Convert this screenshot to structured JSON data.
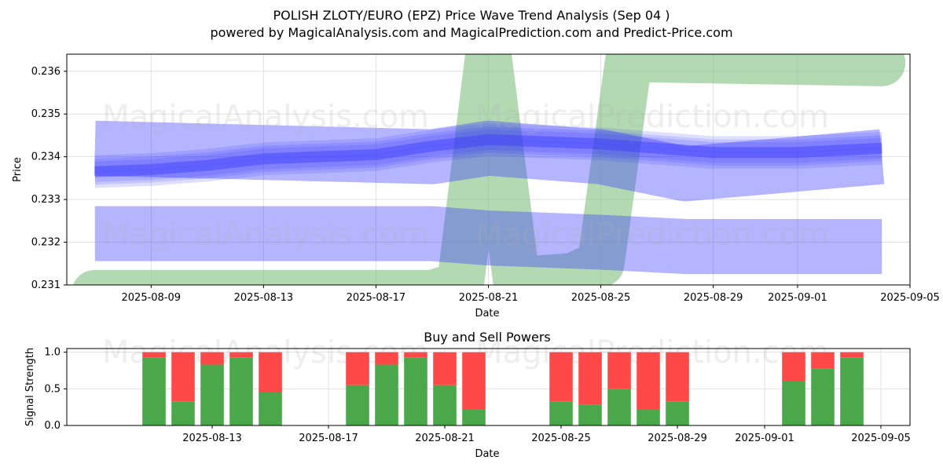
{
  "title": "POLISH ZLOTY/EURO (EPZ) Price Wave Trend Analysis (Sep 04 )",
  "subtitle": "powered by MagicalAnalysis.com and MagicalPrediction.com and Predict-Price.com",
  "watermarks": [
    "MagicalAnalysis.com",
    "MagicalPrediction.com"
  ],
  "colors": {
    "buy": "#4aa84a",
    "sell": "#ff4848",
    "wave": "#3a3aff",
    "green_band": "#7fbf7f",
    "grid": "#e0e0e0"
  },
  "chart_data": [
    {
      "type": "area",
      "xlabel": "Date",
      "ylabel": "Price",
      "xlim": [
        "2025-08-06",
        "2025-09-05"
      ],
      "ylim": [
        0.231,
        0.2364
      ],
      "x_ticks": [
        "2025-08-09",
        "2025-08-13",
        "2025-08-17",
        "2025-08-21",
        "2025-08-25",
        "2025-08-29",
        "2025-09-01",
        "2025-09-05"
      ],
      "y_ticks": [
        "0.231",
        "0.232",
        "0.233",
        "0.234",
        "0.235",
        "0.236"
      ],
      "grid": true,
      "series": [
        {
          "kind": "green_band",
          "points": [
            [
              "2025-08-07",
              0.2308
            ],
            [
              "2025-08-19",
              0.2308
            ],
            [
              "2025-08-20",
              0.231
            ],
            [
              "2025-08-21",
              0.2363
            ],
            [
              "2025-08-22",
              0.2311
            ],
            [
              "2025-08-24",
              0.2312
            ],
            [
              "2025-08-25",
              0.2315
            ],
            [
              "2025-08-26",
              0.2363
            ],
            [
              "2025-09-04",
              0.2362
            ]
          ]
        },
        {
          "kind": "upper_channel",
          "points": [
            [
              "2025-08-07",
              0.2342
            ],
            [
              "2025-08-19",
              0.234
            ],
            [
              "2025-08-21",
              0.2342
            ],
            [
              "2025-08-25",
              0.234
            ],
            [
              "2025-08-28",
              0.2336
            ],
            [
              "2025-09-04",
              0.234
            ]
          ]
        },
        {
          "kind": "lower_channel",
          "points": [
            [
              "2025-08-07",
              0.2322
            ],
            [
              "2025-08-19",
              0.2322
            ],
            [
              "2025-08-21",
              0.2321
            ],
            [
              "2025-08-25",
              0.232
            ],
            [
              "2025-08-28",
              0.2319
            ],
            [
              "2025-09-04",
              0.2319
            ]
          ]
        },
        {
          "kind": "price_wave",
          "points": [
            [
              "2025-08-07",
              0.23365
            ],
            [
              "2025-08-09",
              0.2337
            ],
            [
              "2025-08-11",
              0.2338
            ],
            [
              "2025-08-13",
              0.23395
            ],
            [
              "2025-08-15",
              0.234
            ],
            [
              "2025-08-17",
              0.23405
            ],
            [
              "2025-08-19",
              0.23425
            ],
            [
              "2025-08-21",
              0.2344
            ],
            [
              "2025-08-23",
              0.23435
            ],
            [
              "2025-08-25",
              0.2343
            ],
            [
              "2025-08-27",
              0.2342
            ],
            [
              "2025-08-29",
              0.2341
            ],
            [
              "2025-09-01",
              0.2341
            ],
            [
              "2025-09-04",
              0.2342
            ]
          ]
        }
      ]
    },
    {
      "type": "bar",
      "title": "Buy and Sell Powers",
      "xlabel": "Date",
      "ylabel": "Signal Strength",
      "xlim": [
        "2025-08-08",
        "2025-09-06"
      ],
      "ylim": [
        0,
        1.05
      ],
      "x_ticks": [
        "2025-08-13",
        "2025-08-17",
        "2025-08-21",
        "2025-08-25",
        "2025-08-29",
        "2025-09-01",
        "2025-09-05"
      ],
      "y_ticks": [
        "0.0",
        "0.5",
        "1.0"
      ],
      "grid": true,
      "categories": [
        "2025-08-11",
        "2025-08-12",
        "2025-08-13",
        "2025-08-14",
        "2025-08-15",
        "2025-08-18",
        "2025-08-19",
        "2025-08-20",
        "2025-08-21",
        "2025-08-22",
        "2025-08-25",
        "2025-08-26",
        "2025-08-27",
        "2025-08-28",
        "2025-08-29",
        "2025-09-02",
        "2025-09-03",
        "2025-09-04"
      ],
      "series": [
        {
          "name": "Buy",
          "values": [
            0.93,
            0.33,
            0.83,
            0.93,
            0.45,
            0.55,
            0.83,
            0.93,
            0.55,
            0.22,
            0.33,
            0.28,
            0.5,
            0.22,
            0.33,
            0.6,
            0.78,
            0.93
          ]
        },
        {
          "name": "Sell",
          "values": [
            0.07,
            0.67,
            0.17,
            0.07,
            0.55,
            0.45,
            0.17,
            0.07,
            0.45,
            0.78,
            0.67,
            0.72,
            0.5,
            0.78,
            0.67,
            0.4,
            0.22,
            0.07
          ]
        }
      ]
    }
  ]
}
